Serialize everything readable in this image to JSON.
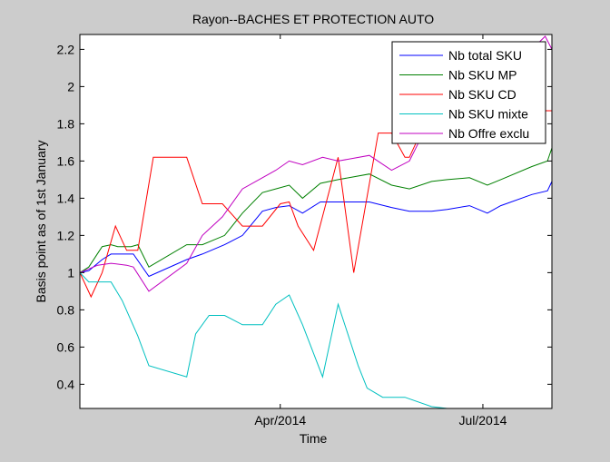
{
  "chart_data": {
    "type": "line",
    "title": "Rayon--BACHES ET PROTECTION AUTO",
    "xlabel": "Time",
    "ylabel": "Basis point as of 1st January",
    "x_tick_labels": [
      "Apr/2014",
      "Jul/2014"
    ],
    "x_tick_days": [
      90,
      181
    ],
    "x_range_days": [
      0,
      212
    ],
    "ylim": [
      0.27,
      2.28
    ],
    "y_ticks": [
      0.4,
      0.6,
      0.8,
      1,
      1.2,
      1.4,
      1.6,
      1.8,
      2,
      2.2
    ],
    "y_tick_labels": [
      "0.4",
      "0.6",
      "0.8",
      "1",
      "1.2",
      "1.4",
      "1.6",
      "1.8",
      "2",
      "2.2"
    ],
    "grid": false,
    "legend_position": "top-right",
    "series": [
      {
        "name": "Nb total SKU",
        "color": "#0000ff",
        "x": [
          0,
          4,
          10,
          14,
          18,
          21,
          24,
          31,
          48,
          55,
          65,
          73,
          82,
          88,
          94,
          100,
          108,
          116,
          130,
          140,
          148,
          158,
          165,
          175,
          183,
          189,
          203,
          210,
          212
        ],
        "y": [
          1.0,
          1.01,
          1.07,
          1.1,
          1.1,
          1.1,
          1.1,
          0.98,
          1.07,
          1.1,
          1.15,
          1.2,
          1.33,
          1.35,
          1.36,
          1.32,
          1.38,
          1.38,
          1.38,
          1.35,
          1.33,
          1.33,
          1.34,
          1.36,
          1.32,
          1.36,
          1.42,
          1.44,
          1.49
        ]
      },
      {
        "name": "Nb SKU MP",
        "color": "#008000",
        "x": [
          0,
          4,
          10,
          14,
          17,
          20,
          23,
          26,
          31,
          48,
          55,
          65,
          73,
          82,
          88,
          94,
          100,
          108,
          116,
          130,
          140,
          148,
          158,
          165,
          175,
          183,
          189,
          203,
          210,
          212
        ],
        "y": [
          1.0,
          1.03,
          1.14,
          1.15,
          1.14,
          1.14,
          1.14,
          1.15,
          1.03,
          1.15,
          1.15,
          1.2,
          1.32,
          1.43,
          1.45,
          1.47,
          1.4,
          1.48,
          1.5,
          1.53,
          1.47,
          1.45,
          1.49,
          1.5,
          1.51,
          1.47,
          1.5,
          1.57,
          1.6,
          1.67
        ]
      },
      {
        "name": "Nb SKU CD",
        "color": "#ff0000",
        "x": [
          0,
          5,
          10,
          16,
          21,
          26,
          33,
          48,
          55,
          64,
          73,
          82,
          90,
          94,
          98,
          105,
          116,
          123,
          134,
          140,
          146,
          148,
          153,
          158,
          165,
          171,
          176,
          183,
          189,
          193,
          200,
          203,
          212
        ],
        "y": [
          1.0,
          0.87,
          1.0,
          1.25,
          1.12,
          1.12,
          1.62,
          1.62,
          1.37,
          1.37,
          1.25,
          1.25,
          1.37,
          1.38,
          1.25,
          1.12,
          1.62,
          1.0,
          1.75,
          1.75,
          1.62,
          1.62,
          1.75,
          1.75,
          1.75,
          1.87,
          1.87,
          1.87,
          1.87,
          1.87,
          1.87,
          1.87,
          1.87
        ]
      },
      {
        "name": "Nb SKU mixte",
        "color": "#00c0c0",
        "x": [
          0,
          4,
          9,
          14,
          19,
          26,
          31,
          48,
          52,
          58,
          65,
          73,
          82,
          88,
          94,
          100,
          109,
          116,
          125,
          129,
          136,
          142,
          146,
          158,
          165,
          171,
          176
        ],
        "y": [
          1.0,
          0.95,
          0.95,
          0.95,
          0.85,
          0.66,
          0.5,
          0.44,
          0.67,
          0.77,
          0.77,
          0.72,
          0.72,
          0.83,
          0.88,
          0.72,
          0.44,
          0.83,
          0.5,
          0.38,
          0.33,
          0.33,
          0.33,
          0.28,
          0.27,
          0.27,
          0.27
        ]
      },
      {
        "name": "Nb Offre exclu",
        "color": "#c000c0",
        "x": [
          0,
          8,
          14,
          21,
          24,
          31,
          48,
          55,
          64,
          73,
          82,
          88,
          94,
          100,
          109,
          116,
          130,
          140,
          148,
          158,
          165,
          175,
          183,
          189,
          203,
          209,
          212
        ],
        "y": [
          1.0,
          1.04,
          1.05,
          1.04,
          1.03,
          0.9,
          1.05,
          1.2,
          1.3,
          1.45,
          1.51,
          1.55,
          1.6,
          1.58,
          1.62,
          1.6,
          1.63,
          1.55,
          1.6,
          1.84,
          1.84,
          1.9,
          2.02,
          2.13,
          2.2,
          2.27,
          2.2
        ]
      }
    ]
  }
}
